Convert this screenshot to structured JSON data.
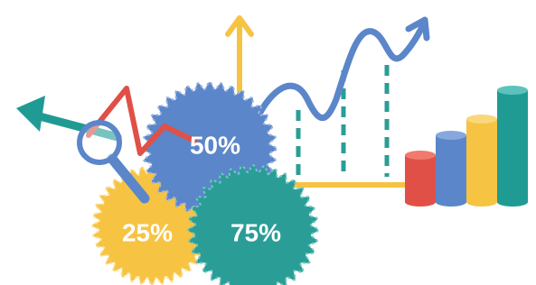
{
  "badges": [
    {
      "label": "50%"
    },
    {
      "label": "25%"
    },
    {
      "label": "75%"
    }
  ]
}
